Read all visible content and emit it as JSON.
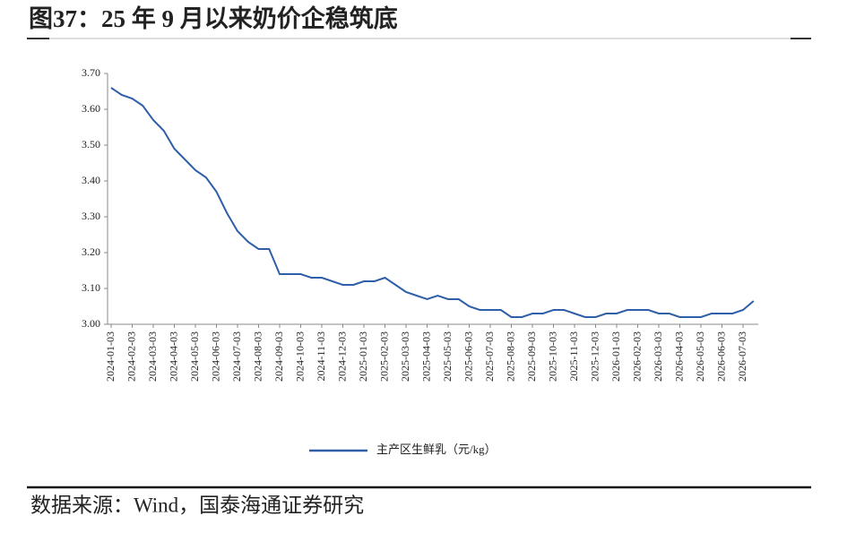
{
  "chart_data": {
    "type": "line",
    "title": "图37：25 年 9 月以来奶价企稳筑底",
    "source": "数据来源：Wind，国泰海通证券研究",
    "categories": [
      "2024-01-03",
      null,
      "2024-02-03",
      null,
      "2024-03-03",
      null,
      "2024-04-03",
      null,
      "2024-05-03",
      null,
      "2024-06-03",
      null,
      "2024-07-03",
      null,
      "2024-08-03",
      null,
      "2024-09-03",
      null,
      "2024-10-03",
      null,
      "2024-11-03",
      null,
      "2024-12-03",
      null,
      "2025-01-03",
      null,
      "2025-02-03",
      null,
      "2025-03-03",
      null,
      "2025-04-03",
      null,
      "2025-05-03",
      null,
      "2025-06-03",
      null,
      "2025-07-03",
      null,
      "2025-08-03",
      null,
      "2025-09-03",
      null,
      "2025-10-03",
      null,
      "2025-11-03",
      null,
      "2025-12-03",
      null,
      "2026-01-03",
      null,
      "2026-02-03",
      null,
      "2026-03-03",
      null,
      "2026-04-03",
      null,
      "2026-05-03",
      null,
      "2026-06-03",
      null,
      "2026-07-03",
      null
    ],
    "series": [
      {
        "name": "主产区生鲜乳（元/kg）",
        "color": "#2e5fa8",
        "values": [
          3.66,
          3.64,
          3.63,
          3.61,
          3.57,
          3.54,
          3.49,
          3.46,
          3.43,
          3.41,
          3.37,
          3.31,
          3.26,
          3.23,
          3.21,
          3.21,
          3.14,
          3.14,
          3.14,
          3.13,
          3.13,
          3.12,
          3.11,
          3.11,
          3.12,
          3.12,
          3.13,
          3.11,
          3.09,
          3.08,
          3.07,
          3.08,
          3.07,
          3.07,
          3.05,
          3.04,
          3.04,
          3.04,
          3.02,
          3.02,
          3.03,
          3.03,
          3.04,
          3.04,
          3.03,
          3.02,
          3.02,
          3.03,
          3.03,
          3.04,
          3.04,
          3.04,
          3.03,
          3.03,
          3.02,
          3.02,
          3.02,
          3.03,
          3.03,
          3.03,
          3.04,
          3.065
        ]
      }
    ],
    "ylim": [
      3.0,
      3.7
    ],
    "yticks": [
      {
        "value": 3.0,
        "label": "3.00"
      },
      {
        "value": 3.1,
        "label": "3.10"
      },
      {
        "value": 3.2,
        "label": "3.20"
      },
      {
        "value": 3.3,
        "label": "3.30"
      },
      {
        "value": 3.4,
        "label": "3.40"
      },
      {
        "value": 3.5,
        "label": "3.50"
      },
      {
        "value": 3.6,
        "label": "3.60"
      },
      {
        "value": 3.7,
        "label": "3.70"
      }
    ],
    "legend": "bottom"
  }
}
